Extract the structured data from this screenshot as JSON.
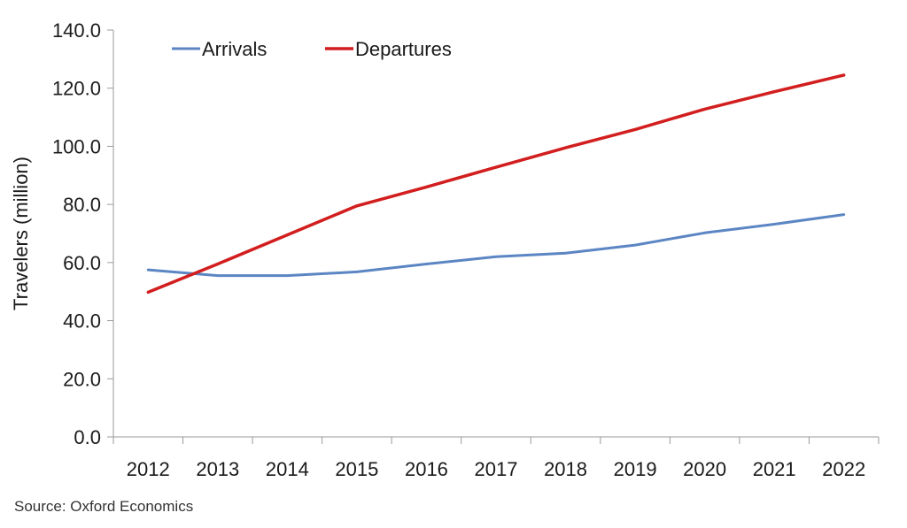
{
  "chart_data": {
    "type": "line",
    "title": "",
    "xlabel": "",
    "ylabel": "Travelers (million)",
    "categories": [
      "2012",
      "2013",
      "2014",
      "2015",
      "2016",
      "2017",
      "2018",
      "2019",
      "2020",
      "2021",
      "2022"
    ],
    "ylim": [
      0,
      140
    ],
    "yticks": [
      "0.0",
      "20.0",
      "40.0",
      "60.0",
      "80.0",
      "100.0",
      "120.0",
      "140.0"
    ],
    "grid": false,
    "legend_position": "top-left",
    "series": [
      {
        "name": "Arrivals",
        "color": "#5b86c3",
        "values": [
          57.5,
          55.5,
          55.5,
          56.8,
          59.5,
          62.0,
          63.2,
          66.0,
          70.2,
          73.2,
          76.5
        ]
      },
      {
        "name": "Departures",
        "color": "#d21e1e",
        "values": [
          49.8,
          59.5,
          69.5,
          79.5,
          86.0,
          92.8,
          99.5,
          105.8,
          112.8,
          118.8,
          124.5
        ]
      }
    ]
  },
  "source": "Source:  Oxford Economics"
}
